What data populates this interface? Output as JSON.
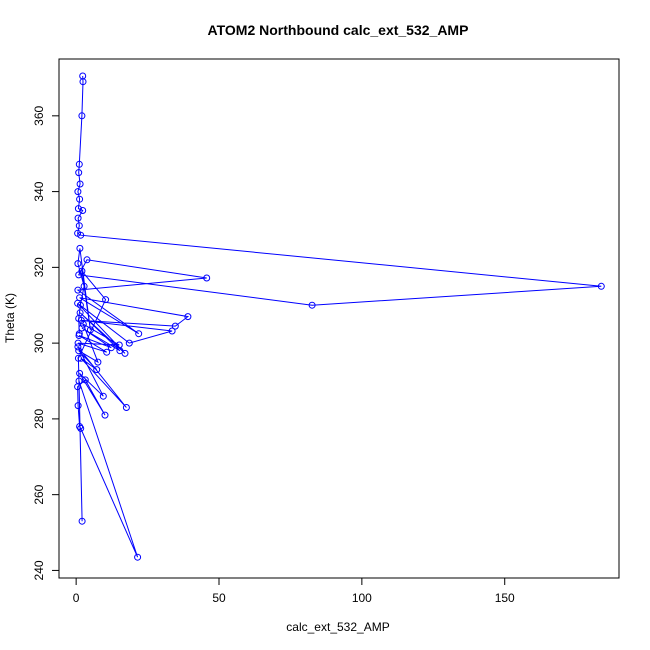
{
  "chart_data": {
    "type": "line",
    "title": "ATOM2 Northbound calc_ext_532_AMP",
    "xlabel": "calc_ext_532_AMP",
    "ylabel": "Theta (K)",
    "xlim": [
      -6,
      190
    ],
    "ylim": [
      238,
      375
    ],
    "xticks": [
      0,
      50,
      100,
      150
    ],
    "yticks": [
      240,
      260,
      280,
      300,
      320,
      340,
      360
    ],
    "grid": false,
    "legend": "none",
    "series": [
      {
        "color": "#0000ff",
        "marker": "open-circle",
        "points": [
          [
            2.3,
            370.5
          ],
          [
            2.4,
            369.0
          ],
          [
            2.0,
            360.0
          ],
          [
            1.1,
            347.2
          ],
          [
            0.9,
            345.0
          ],
          [
            1.4,
            342.0
          ],
          [
            0.6,
            340.0
          ],
          [
            1.2,
            338.0
          ],
          [
            0.8,
            335.5
          ],
          [
            2.3,
            335.0
          ],
          [
            0.7,
            333.0
          ],
          [
            1.1,
            331.0
          ],
          [
            0.5,
            329.0
          ],
          [
            1.6,
            328.5
          ],
          [
            183.8,
            315.0
          ],
          [
            82.6,
            310.0
          ],
          [
            0.9,
            318.0
          ],
          [
            3.8,
            322.0
          ],
          [
            45.7,
            317.2
          ],
          [
            0.6,
            314.0
          ],
          [
            21.9,
            302.5
          ],
          [
            1.2,
            312.0
          ],
          [
            39.1,
            307.0
          ],
          [
            34.7,
            304.5
          ],
          [
            1.8,
            306.0
          ],
          [
            33.6,
            303.2
          ],
          [
            18.6,
            300.0
          ],
          [
            0.5,
            310.5
          ],
          [
            17.1,
            297.3
          ],
          [
            1.4,
            308.0
          ],
          [
            15.3,
            298.0
          ],
          [
            2.0,
            304.0
          ],
          [
            12.3,
            298.8
          ],
          [
            1.0,
            302.0
          ],
          [
            10.7,
            297.6
          ],
          [
            0.7,
            300.0
          ],
          [
            15.1,
            299.5
          ],
          [
            2.5,
            305.0
          ],
          [
            7.6,
            295.0
          ],
          [
            0.9,
            298.0
          ],
          [
            7.2,
            293.0
          ],
          [
            1.7,
            296.0
          ],
          [
            17.6,
            283.0
          ],
          [
            0.6,
            299.0
          ],
          [
            9.5,
            286.0
          ],
          [
            1.2,
            292.0
          ],
          [
            10.1,
            281.0
          ],
          [
            3.2,
            290.3
          ],
          [
            0.5,
            288.5
          ],
          [
            0.7,
            283.5
          ],
          [
            1.2,
            278.0
          ],
          [
            1.6,
            277.5
          ],
          [
            21.5,
            243.5
          ],
          [
            1.0,
            290.0
          ],
          [
            2.1,
            253.0
          ],
          [
            0.8,
            296.0
          ],
          [
            10.3,
            311.5
          ],
          [
            2.0,
            319.0
          ],
          [
            5.0,
            303.5
          ],
          [
            1.3,
            325.0
          ],
          [
            0.6,
            321.0
          ],
          [
            2.8,
            315.0
          ],
          [
            1.5,
            310.0
          ],
          [
            0.9,
            306.5
          ],
          [
            1.1,
            302.5
          ]
        ]
      }
    ]
  }
}
